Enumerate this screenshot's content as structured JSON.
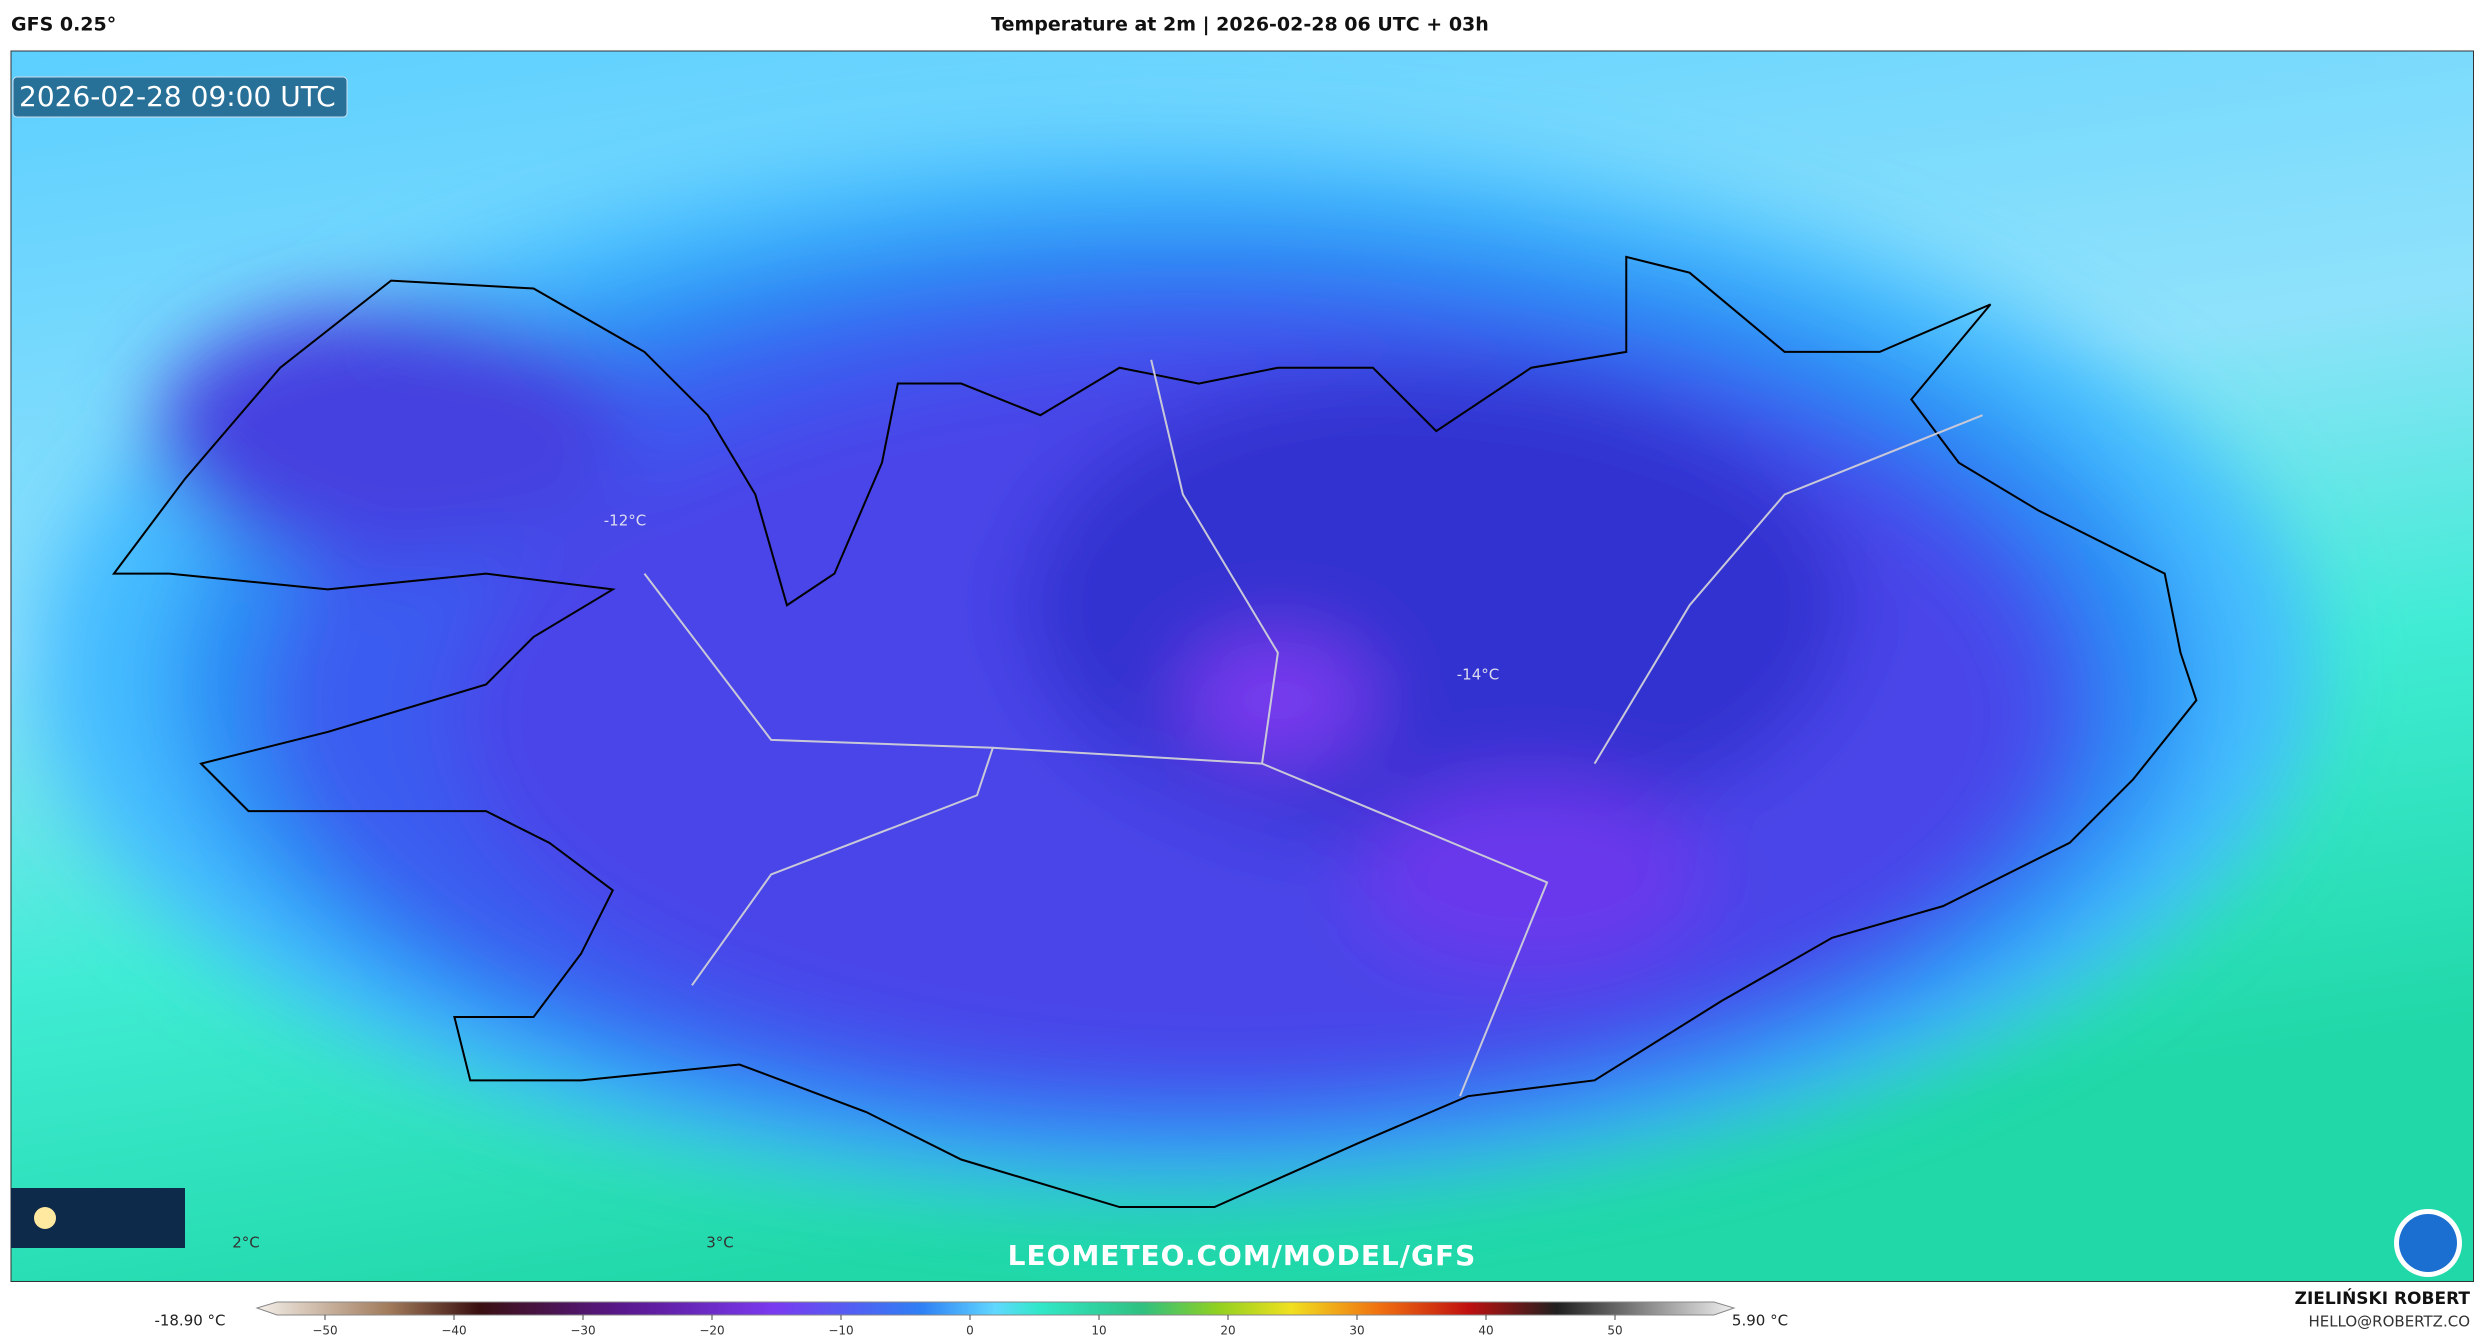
{
  "header": {
    "model": "GFS 0.25°",
    "title": "Temperature at 2m | 2026-02-28 06 UTC + 03h"
  },
  "map": {
    "valid_time": "2026-02-28 09:00 UTC",
    "labels": [
      "-12°C",
      "-14°C",
      "2°C",
      "3°C"
    ],
    "watermark": "LEOMETEO.COM/MODEL/GFS"
  },
  "colorbar": {
    "min_label": "-18.90 °C",
    "max_label": "5.90 °C",
    "ticks": [
      {
        "value": -50,
        "label": "−50"
      },
      {
        "value": -40,
        "label": "−40"
      },
      {
        "value": -30,
        "label": "−30"
      },
      {
        "value": -20,
        "label": "−20"
      },
      {
        "value": -10,
        "label": "−10"
      },
      0,
      10,
      20,
      30,
      40,
      50
    ]
  },
  "footer": {
    "author": "ZIELIŃSKI ROBERT",
    "email": "HELLO@ROBERTZ.CO"
  }
}
